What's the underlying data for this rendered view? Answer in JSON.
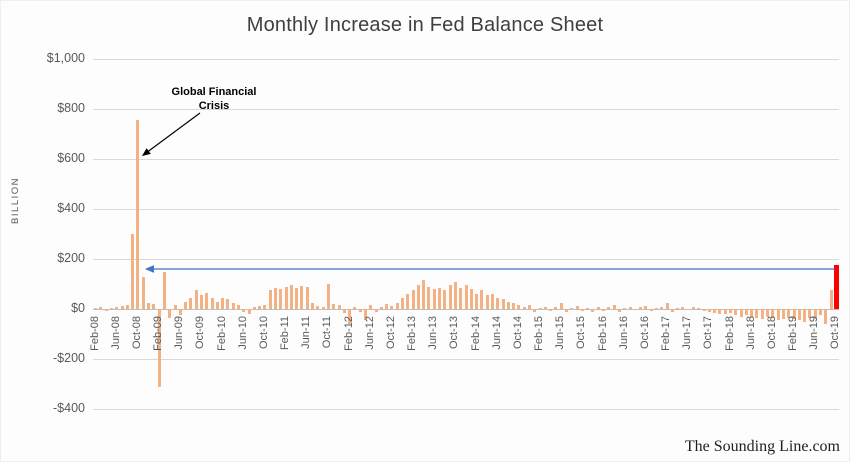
{
  "title": "Monthly Increase in Fed Balance Sheet",
  "watermark": "The Sounding Line.com",
  "y_axis": {
    "label": "BILLION",
    "tick_labels": [
      "$1,000",
      "$800",
      "$600",
      "$400",
      "$200",
      "$0",
      "-$200",
      "-$400"
    ],
    "tick_values": [
      1000,
      800,
      600,
      400,
      200,
      0,
      -200,
      -400
    ]
  },
  "annotations": {
    "gfc": {
      "text": "Global Financial Crisis",
      "target_month": "Oct-08"
    },
    "comparison_arrow": {
      "value": 160,
      "from_month": "Nov-08",
      "to_month": "Oct-19",
      "color": "#4472C4"
    }
  },
  "chart_data": {
    "type": "bar",
    "title": "Monthly Increase in Fed Balance Sheet",
    "xlabel": "",
    "ylabel": "BILLION",
    "unit": "$ billions",
    "ylim": [
      -400,
      1000
    ],
    "grid": true,
    "legend": false,
    "bar_color": "#F4B183",
    "highlight_color": "#FF0000",
    "highlight_index": 140,
    "x_tick_step": 4,
    "categories": [
      "Feb-08",
      "Mar-08",
      "Apr-08",
      "May-08",
      "Jun-08",
      "Jul-08",
      "Aug-08",
      "Sep-08",
      "Oct-08",
      "Nov-08",
      "Dec-08",
      "Jan-09",
      "Feb-09",
      "Mar-09",
      "Apr-09",
      "May-09",
      "Jun-09",
      "Jul-09",
      "Aug-09",
      "Sep-09",
      "Oct-09",
      "Nov-09",
      "Dec-09",
      "Jan-10",
      "Feb-10",
      "Mar-10",
      "Apr-10",
      "May-10",
      "Jun-10",
      "Jul-10",
      "Aug-10",
      "Sep-10",
      "Oct-10",
      "Nov-10",
      "Dec-10",
      "Jan-11",
      "Feb-11",
      "Mar-11",
      "Apr-11",
      "May-11",
      "Jun-11",
      "Jul-11",
      "Aug-11",
      "Sep-11",
      "Oct-11",
      "Nov-11",
      "Dec-11",
      "Jan-12",
      "Feb-12",
      "Mar-12",
      "Apr-12",
      "May-12",
      "Jun-12",
      "Jul-12",
      "Aug-12",
      "Sep-12",
      "Oct-12",
      "Nov-12",
      "Dec-12",
      "Jan-13",
      "Feb-13",
      "Mar-13",
      "Apr-13",
      "May-13",
      "Jun-13",
      "Jul-13",
      "Aug-13",
      "Sep-13",
      "Oct-13",
      "Nov-13",
      "Dec-13",
      "Jan-14",
      "Feb-14",
      "Mar-14",
      "Apr-14",
      "May-14",
      "Jun-14",
      "Jul-14",
      "Aug-14",
      "Sep-14",
      "Oct-14",
      "Nov-14",
      "Dec-14",
      "Jan-15",
      "Feb-15",
      "Mar-15",
      "Apr-15",
      "May-15",
      "Jun-15",
      "Jul-15",
      "Aug-15",
      "Sep-15",
      "Oct-15",
      "Nov-15",
      "Dec-15",
      "Jan-16",
      "Feb-16",
      "Mar-16",
      "Apr-16",
      "May-16",
      "Jun-16",
      "Jul-16",
      "Aug-16",
      "Sep-16",
      "Oct-16",
      "Nov-16",
      "Dec-16",
      "Jan-17",
      "Feb-17",
      "Mar-17",
      "Apr-17",
      "May-17",
      "Jun-17",
      "Jul-17",
      "Aug-17",
      "Sep-17",
      "Oct-17",
      "Nov-17",
      "Dec-17",
      "Jan-18",
      "Feb-18",
      "Mar-18",
      "Apr-18",
      "May-18",
      "Jun-18",
      "Jul-18",
      "Aug-18",
      "Sep-18",
      "Oct-18",
      "Nov-18",
      "Dec-18",
      "Jan-19",
      "Feb-19",
      "Mar-19",
      "Apr-19",
      "May-19",
      "Jun-19",
      "Jul-19",
      "Aug-19",
      "Sep-19",
      "Oct-19"
    ],
    "values": [
      5,
      10,
      -8,
      6,
      8,
      12,
      15,
      300,
      755,
      130,
      25,
      20,
      -310,
      150,
      -35,
      15,
      -25,
      30,
      45,
      75,
      55,
      65,
      45,
      30,
      45,
      40,
      25,
      15,
      -12,
      -18,
      8,
      12,
      18,
      75,
      85,
      80,
      90,
      95,
      85,
      92,
      88,
      25,
      12,
      8,
      100,
      20,
      15,
      -15,
      -60,
      10,
      -12,
      -45,
      15,
      -10,
      8,
      20,
      12,
      25,
      45,
      60,
      75,
      95,
      115,
      90,
      80,
      85,
      75,
      95,
      110,
      85,
      95,
      80,
      60,
      75,
      55,
      62,
      45,
      40,
      30,
      25,
      18,
      10,
      15,
      -10,
      6,
      10,
      -6,
      8,
      25,
      -10,
      5,
      12,
      -8,
      6,
      -12,
      10,
      -6,
      8,
      15,
      -10,
      5,
      10,
      -5,
      8,
      12,
      -8,
      5,
      10,
      25,
      -10,
      5,
      8,
      -5,
      10,
      5,
      -8,
      -12,
      -15,
      -20,
      -20,
      -15,
      -25,
      -30,
      -25,
      -30,
      -35,
      -40,
      -30,
      -35,
      -45,
      -40,
      -35,
      -40,
      -45,
      -50,
      -35,
      -40,
      -25,
      -60,
      75,
      175
    ]
  }
}
